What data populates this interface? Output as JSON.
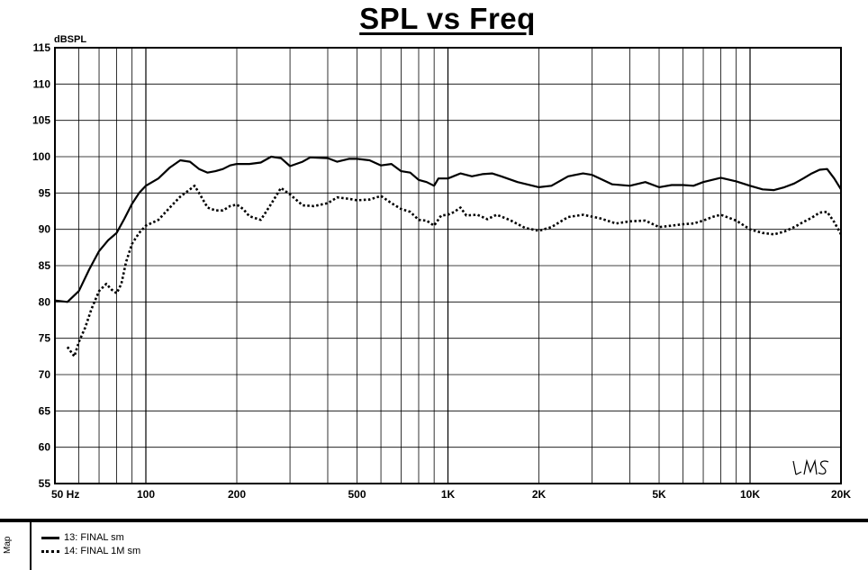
{
  "chart_data": {
    "type": "line",
    "title": "SPL vs Freq",
    "ylabel": "dBSPL",
    "xscale": "log",
    "xlim": [
      50,
      20000
    ],
    "ylim": [
      55,
      115
    ],
    "grid": true,
    "y_ticks": [
      115,
      110,
      105,
      100,
      95,
      90,
      85,
      80,
      75,
      70,
      65,
      60,
      55
    ],
    "x_ticks": [
      {
        "value": 50,
        "label": "50 Hz"
      },
      {
        "value": 100,
        "label": "100"
      },
      {
        "value": 200,
        "label": "200"
      },
      {
        "value": 500,
        "label": "500"
      },
      {
        "value": 1000,
        "label": "1K"
      },
      {
        "value": 2000,
        "label": "2K"
      },
      {
        "value": 5000,
        "label": "5K"
      },
      {
        "value": 10000,
        "label": "10K"
      },
      {
        "value": 20000,
        "label": "20K"
      }
    ],
    "series": [
      {
        "name": "13: FINAL sm",
        "style": "solid",
        "points": [
          [
            50,
            80.2
          ],
          [
            55,
            80.0
          ],
          [
            60,
            81.5
          ],
          [
            65,
            84.5
          ],
          [
            70,
            87.0
          ],
          [
            75,
            88.5
          ],
          [
            80,
            89.5
          ],
          [
            85,
            91.5
          ],
          [
            90,
            93.5
          ],
          [
            95,
            95.0
          ],
          [
            100,
            96.0
          ],
          [
            110,
            97.0
          ],
          [
            120,
            98.5
          ],
          [
            130,
            99.5
          ],
          [
            140,
            99.3
          ],
          [
            150,
            98.3
          ],
          [
            160,
            97.8
          ],
          [
            170,
            98.0
          ],
          [
            180,
            98.3
          ],
          [
            190,
            98.8
          ],
          [
            200,
            99.0
          ],
          [
            220,
            99.0
          ],
          [
            240,
            99.2
          ],
          [
            260,
            100.0
          ],
          [
            280,
            99.8
          ],
          [
            300,
            98.7
          ],
          [
            330,
            99.3
          ],
          [
            350,
            99.9
          ],
          [
            400,
            99.8
          ],
          [
            430,
            99.3
          ],
          [
            470,
            99.7
          ],
          [
            500,
            99.7
          ],
          [
            550,
            99.5
          ],
          [
            600,
            98.8
          ],
          [
            650,
            99.0
          ],
          [
            700,
            98.0
          ],
          [
            750,
            97.8
          ],
          [
            800,
            96.8
          ],
          [
            850,
            96.5
          ],
          [
            900,
            96.0
          ],
          [
            930,
            97.0
          ],
          [
            1000,
            97.0
          ],
          [
            1100,
            97.7
          ],
          [
            1200,
            97.3
          ],
          [
            1300,
            97.6
          ],
          [
            1400,
            97.7
          ],
          [
            1500,
            97.3
          ],
          [
            1700,
            96.5
          ],
          [
            2000,
            95.8
          ],
          [
            2200,
            96.0
          ],
          [
            2500,
            97.3
          ],
          [
            2800,
            97.7
          ],
          [
            3000,
            97.5
          ],
          [
            3500,
            96.2
          ],
          [
            4000,
            96.0
          ],
          [
            4500,
            96.5
          ],
          [
            5000,
            95.8
          ],
          [
            5500,
            96.1
          ],
          [
            6000,
            96.1
          ],
          [
            6500,
            96.0
          ],
          [
            7000,
            96.5
          ],
          [
            8000,
            97.1
          ],
          [
            9000,
            96.6
          ],
          [
            10000,
            96.0
          ],
          [
            11000,
            95.5
          ],
          [
            12000,
            95.4
          ],
          [
            13000,
            95.8
          ],
          [
            14000,
            96.3
          ],
          [
            15000,
            97.0
          ],
          [
            16000,
            97.7
          ],
          [
            17000,
            98.2
          ],
          [
            18000,
            98.3
          ],
          [
            19000,
            97.0
          ],
          [
            20000,
            95.5
          ]
        ]
      },
      {
        "name": "14: FINAL 1M sm",
        "style": "dotted",
        "points": [
          [
            55,
            73.8
          ],
          [
            58,
            72.5
          ],
          [
            60,
            74.5
          ],
          [
            63,
            76.5
          ],
          [
            66,
            79.0
          ],
          [
            70,
            81.5
          ],
          [
            74,
            82.5
          ],
          [
            77,
            81.7
          ],
          [
            80,
            81.2
          ],
          [
            83,
            82.5
          ],
          [
            86,
            85.5
          ],
          [
            90,
            88.0
          ],
          [
            95,
            89.5
          ],
          [
            100,
            90.5
          ],
          [
            110,
            91.3
          ],
          [
            120,
            93.0
          ],
          [
            130,
            94.5
          ],
          [
            140,
            95.5
          ],
          [
            145,
            96.0
          ],
          [
            150,
            95.0
          ],
          [
            160,
            93.0
          ],
          [
            170,
            92.6
          ],
          [
            180,
            92.6
          ],
          [
            190,
            93.2
          ],
          [
            200,
            93.4
          ],
          [
            210,
            92.8
          ],
          [
            220,
            91.8
          ],
          [
            240,
            91.3
          ],
          [
            260,
            93.5
          ],
          [
            280,
            95.7
          ],
          [
            300,
            94.8
          ],
          [
            330,
            93.3
          ],
          [
            360,
            93.2
          ],
          [
            400,
            93.6
          ],
          [
            430,
            94.4
          ],
          [
            470,
            94.2
          ],
          [
            500,
            94.0
          ],
          [
            550,
            94.1
          ],
          [
            600,
            94.6
          ],
          [
            650,
            93.6
          ],
          [
            700,
            92.8
          ],
          [
            750,
            92.4
          ],
          [
            800,
            91.3
          ],
          [
            850,
            91.2
          ],
          [
            900,
            90.5
          ],
          [
            950,
            91.9
          ],
          [
            1000,
            92.0
          ],
          [
            1050,
            92.4
          ],
          [
            1100,
            93.0
          ],
          [
            1150,
            91.9
          ],
          [
            1250,
            92.0
          ],
          [
            1350,
            91.4
          ],
          [
            1450,
            92.0
          ],
          [
            1600,
            91.3
          ],
          [
            1800,
            90.2
          ],
          [
            2000,
            89.8
          ],
          [
            2200,
            90.3
          ],
          [
            2500,
            91.7
          ],
          [
            2800,
            92.0
          ],
          [
            3200,
            91.5
          ],
          [
            3600,
            90.8
          ],
          [
            4000,
            91.1
          ],
          [
            4500,
            91.2
          ],
          [
            5000,
            90.3
          ],
          [
            5500,
            90.5
          ],
          [
            6000,
            90.7
          ],
          [
            6500,
            90.8
          ],
          [
            7000,
            91.2
          ],
          [
            7500,
            91.7
          ],
          [
            8000,
            92.0
          ],
          [
            8500,
            91.6
          ],
          [
            9000,
            91.2
          ],
          [
            10000,
            90.0
          ],
          [
            11000,
            89.5
          ],
          [
            12000,
            89.3
          ],
          [
            13000,
            89.7
          ],
          [
            14000,
            90.3
          ],
          [
            15000,
            91.0
          ],
          [
            16000,
            91.6
          ],
          [
            17000,
            92.3
          ],
          [
            18000,
            92.4
          ],
          [
            19000,
            91.0
          ],
          [
            20000,
            89.3
          ]
        ]
      }
    ]
  },
  "watermark": "LMS",
  "legend": {
    "map_label": "Map",
    "items": [
      {
        "label": "13: FINAL sm"
      },
      {
        "label": "14: FINAL 1M sm"
      }
    ]
  }
}
